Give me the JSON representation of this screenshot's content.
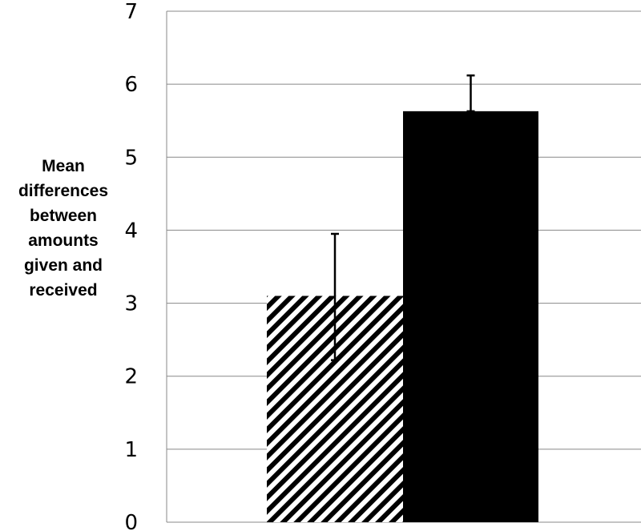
{
  "chart_data": {
    "type": "bar",
    "title": "",
    "xlabel": "",
    "ylabel_lines": [
      "Mean",
      "differences",
      "between",
      "amounts",
      "given and",
      "received"
    ],
    "ylim": [
      0,
      7
    ],
    "yticks": [
      "0",
      "1",
      "2",
      "3",
      "4",
      "5",
      "6",
      "7"
    ],
    "grid": true,
    "legend": "none",
    "categories": [
      "",
      ""
    ],
    "values": [
      3.1,
      5.63
    ],
    "error_bars": [
      {
        "low": 2.22,
        "high": 3.95
      },
      {
        "low": 5.63,
        "high": 6.12
      }
    ],
    "fills": [
      "hatched",
      "#000000"
    ]
  }
}
